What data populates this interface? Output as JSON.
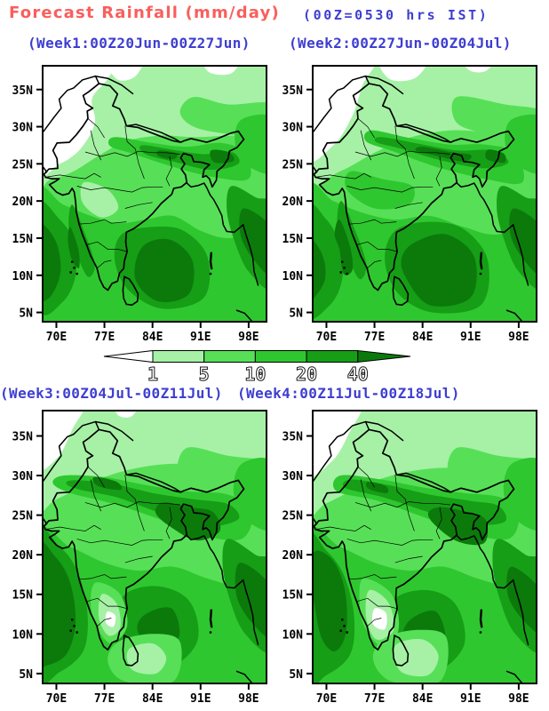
{
  "header": {
    "title": "Forecast Rainfall (mm/day)",
    "subtitle": "(00Z=0530 hrs IST)"
  },
  "colors": {
    "title_red": "#f95f5c",
    "heading_blue": "#3e3ed0",
    "map_outline": "#000000",
    "palette": {
      "c0": "#ffffff",
      "c1": "#a6f1a6",
      "c2": "#57e057",
      "c3": "#2fc72f",
      "c4": "#169e16",
      "c5": "#0b7a0b"
    }
  },
  "chart_data": {
    "type": "heatmap",
    "subtype": "filled-contour-rainfall-maps",
    "region": "India and adjoining seas",
    "grid": "2x2 weekly forecast panels",
    "x_ticks": [
      "70E",
      "77E",
      "84E",
      "91E",
      "98E"
    ],
    "y_ticks": [
      "35N",
      "30N",
      "25N",
      "20N",
      "15N",
      "10N",
      "5N"
    ],
    "lon_domain_deg_east": [
      68.0,
      100.6
    ],
    "lat_domain_deg_north": [
      3.75,
      38.2
    ],
    "contour_levels_mm_per_day": [
      1,
      5,
      10,
      20,
      40
    ],
    "colorbar": {
      "orientation": "horizontal",
      "levels": [
        "1",
        "5",
        "10",
        "20",
        "40"
      ],
      "bin_colors": [
        "#ffffff",
        "#a6f1a6",
        "#57e057",
        "#2fc72f",
        "#169e16",
        "#0b7a0b"
      ],
      "unit": "mm/day"
    },
    "panels": [
      {
        "title": "(Week1:00Z20Jun-00Z27Jun)",
        "summary": "Dry (<1 mm/day) over northwest India and Pakistan; 20-40+ mm/day over southeast Arabian Sea, west coast, Bay of Bengal, Himalayan foothills and northeast India; 5-10 mm/day over central peninsula."
      },
      {
        "title": "(Week2:00Z27Jun-00Z04Jul)",
        "summary": "Dry area over northwest shrinks; heavy 20-40+ mm/day band along Himalayan foothills and northeast; large >40 mm/day cores over Bay of Bengal and off the west coast; 10-20 mm/day over central India."
      },
      {
        "title": "(Week3:00Z04Jul-00Z11Jul)",
        "summary": "Monsoon covers most of India; broad 20-40 mm/day band across the Indo-Gangetic plain with >40 cores near Bangladesh/northeast; strong >40 band over eastern Arabian Sea; lighter 1-5 mm/day pocket over south interior peninsula."
      },
      {
        "title": "(Week4:00Z11Jul-00Z18Jul)",
        "summary": "Similar to week 3: heavy rain along west coast and over Bangladesh/northeast India, widespread 10-20 mm/day over north and central India, light rain pocket over interior Tamil Nadu; <1 mm/day confined to far northwest corner."
      }
    ]
  }
}
